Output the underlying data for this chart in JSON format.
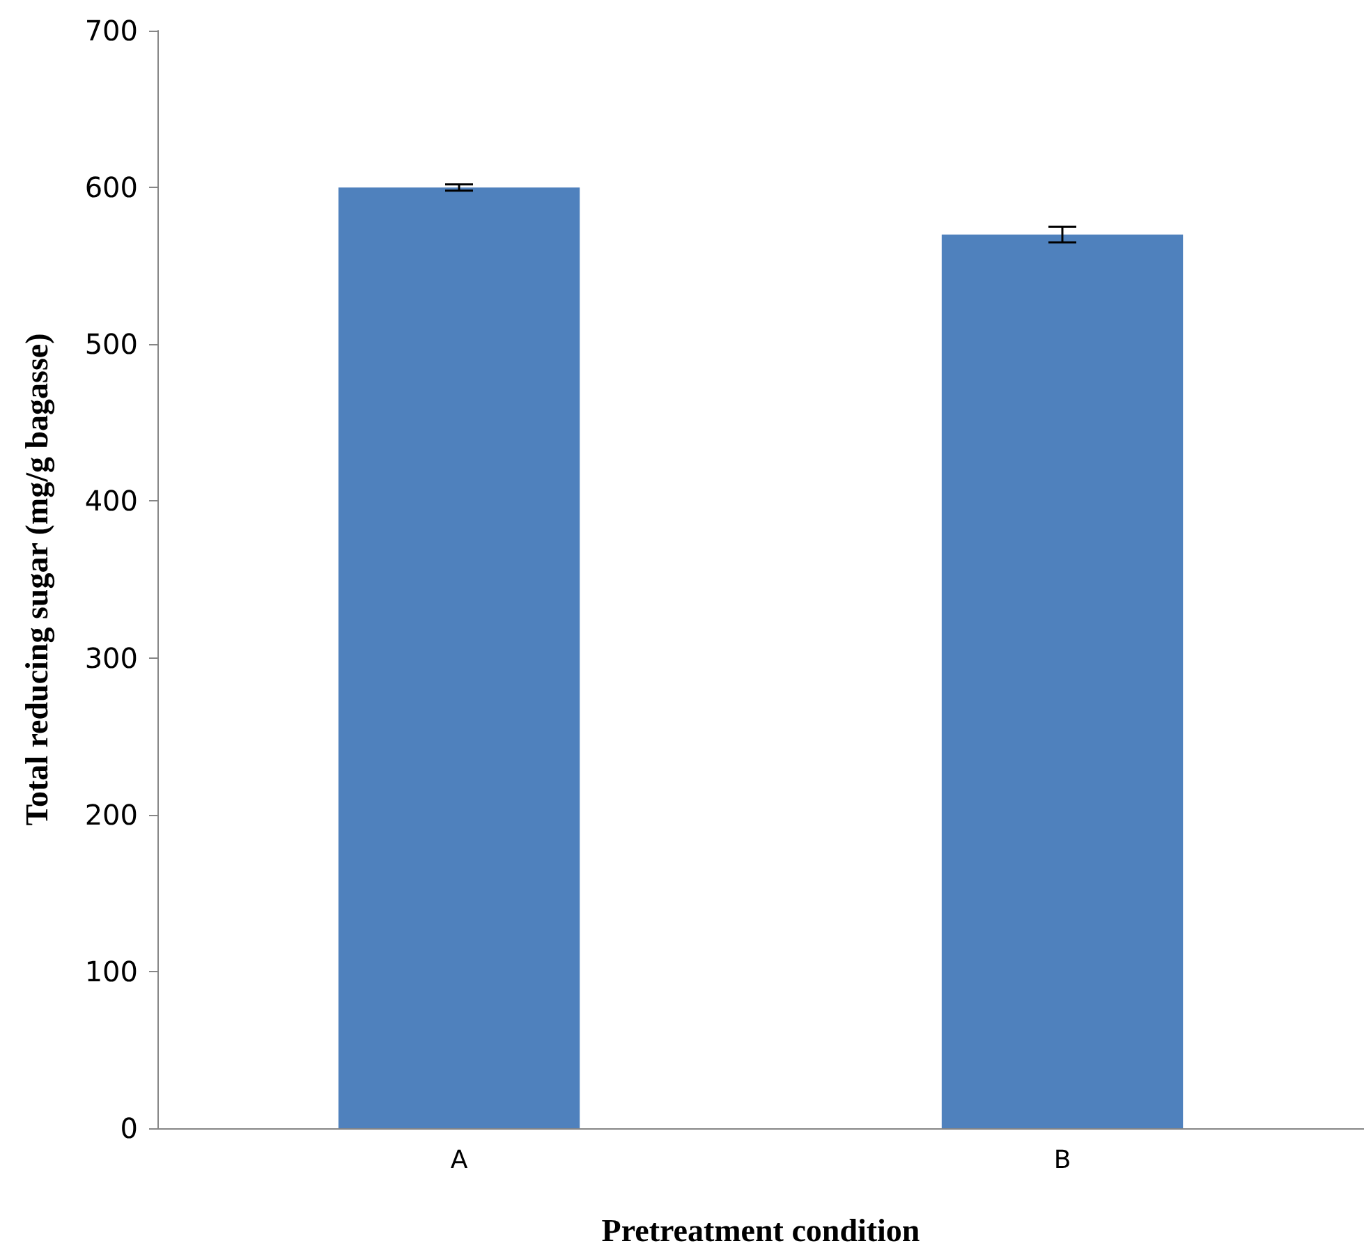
{
  "chart_data": {
    "type": "bar",
    "xlabel": "Pretreatment condition",
    "ylabel": "Total reducing sugar (mg/g bagasse)",
    "categories": [
      "A",
      "B"
    ],
    "series": [
      {
        "color": "#4f81bd",
        "values": [
          600,
          570
        ],
        "errors": [
          2,
          5
        ]
      }
    ],
    "ylim": [
      0,
      700
    ],
    "yticks": [
      0,
      100,
      200,
      300,
      400,
      500,
      600,
      700
    ],
    "grid": false
  }
}
